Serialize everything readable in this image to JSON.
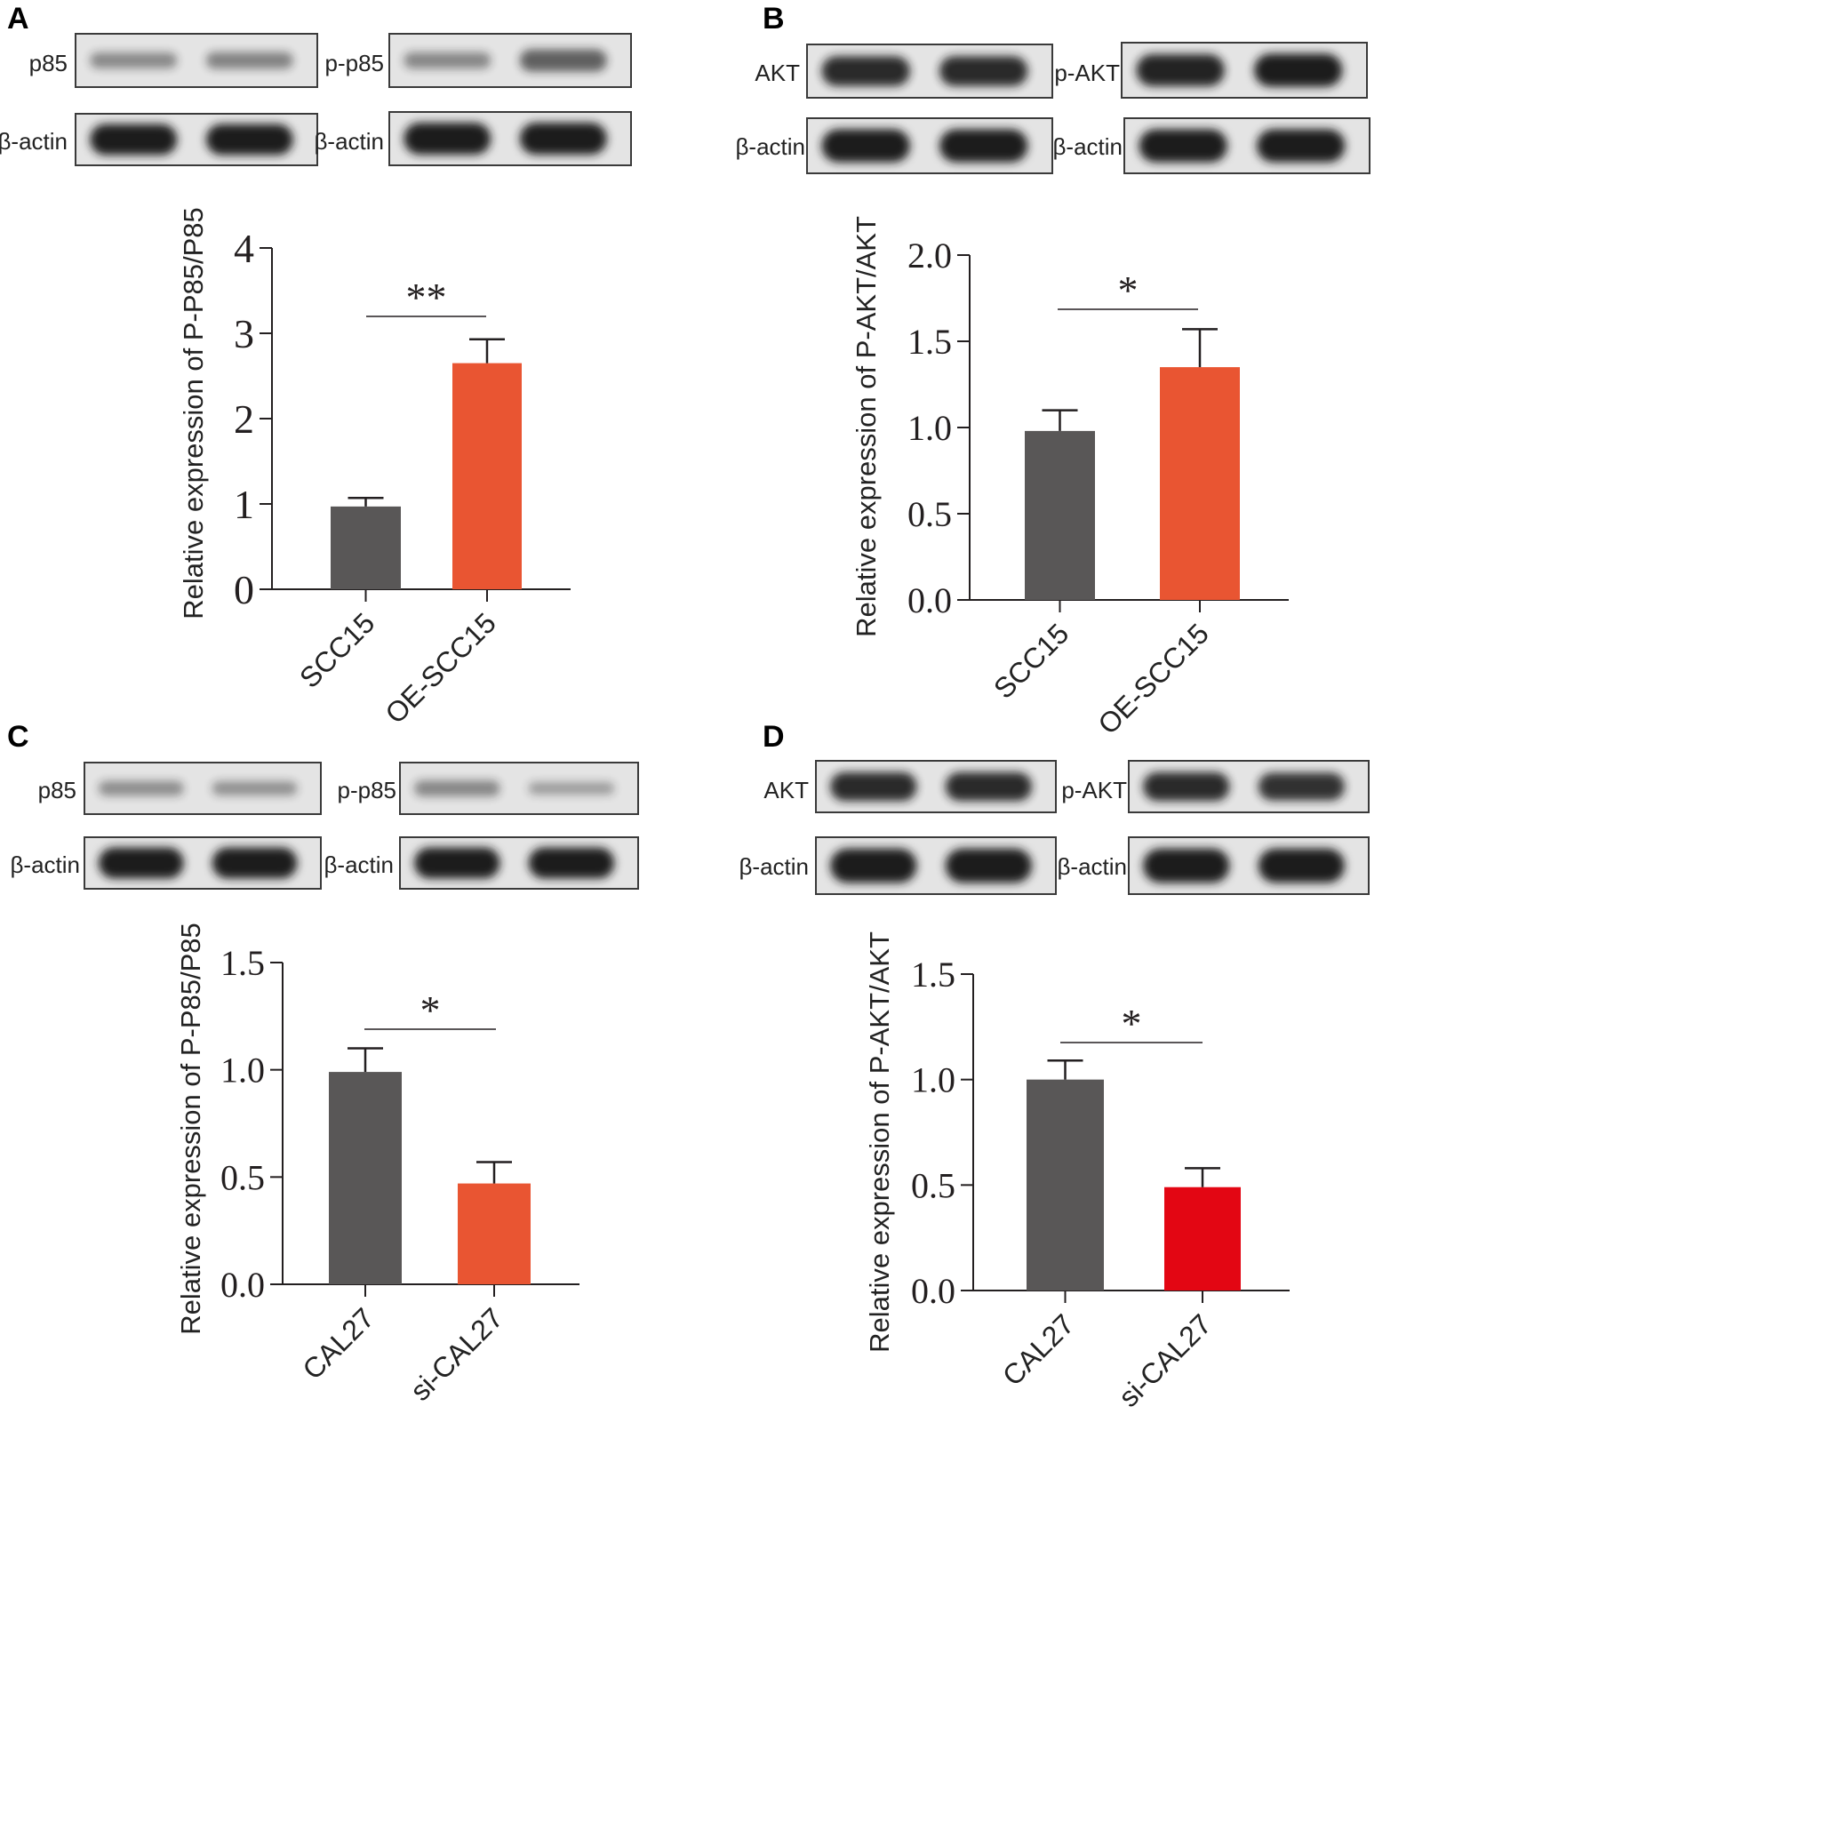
{
  "colors": {
    "control": "#595757",
    "treatment": "#E95532",
    "treatment_red": "#E30613",
    "axis": "#231F20",
    "blot_bg": "#E4E4E4",
    "band": "#1A1A1A"
  },
  "panels": [
    {
      "letter": "A",
      "blots": [
        {
          "label": "p85",
          "band_strength": [
            0.28,
            0.32
          ]
        },
        {
          "label": "p-p85",
          "band_strength": [
            0.3,
            0.55
          ]
        },
        {
          "label": "β-actin",
          "band_strength": [
            1.0,
            1.0
          ]
        },
        {
          "label": "β-actin",
          "band_strength": [
            1.0,
            1.0
          ]
        }
      ]
    },
    {
      "letter": "B",
      "blots": [
        {
          "label": "AKT",
          "band_strength": [
            0.9,
            0.9
          ]
        },
        {
          "label": "p-AKT",
          "band_strength": [
            0.95,
            1.0
          ]
        },
        {
          "label": "β-actin",
          "band_strength": [
            1.0,
            1.0
          ]
        },
        {
          "label": "β-actin",
          "band_strength": [
            1.0,
            1.0
          ]
        }
      ]
    },
    {
      "letter": "C",
      "blots": [
        {
          "label": "p85",
          "band_strength": [
            0.25,
            0.22
          ]
        },
        {
          "label": "p-p85",
          "band_strength": [
            0.3,
            0.15
          ]
        },
        {
          "label": "β-actin",
          "band_strength": [
            1.0,
            1.0
          ]
        },
        {
          "label": "β-actin",
          "band_strength": [
            1.0,
            1.0
          ]
        }
      ]
    },
    {
      "letter": "D",
      "blots": [
        {
          "label": "AKT",
          "band_strength": [
            0.9,
            0.9
          ]
        },
        {
          "label": "p-AKT",
          "band_strength": [
            0.9,
            0.85
          ]
        },
        {
          "label": "β-actin",
          "band_strength": [
            1.0,
            1.0
          ]
        },
        {
          "label": "β-actin",
          "band_strength": [
            1.0,
            1.0
          ]
        }
      ]
    }
  ],
  "chart_data": [
    {
      "panel": "A",
      "type": "bar",
      "categories": [
        "SCC15",
        "OE-SCC15"
      ],
      "values": [
        0.97,
        2.65
      ],
      "errors": [
        0.1,
        0.28
      ],
      "colors": [
        "#595757",
        "#E95532"
      ],
      "ylabel": "Relative expression of  P-P85/P85",
      "ylim": [
        0,
        4
      ],
      "yticks": [
        "0",
        "1",
        "2",
        "3",
        "4"
      ],
      "significance": "**",
      "grid": false
    },
    {
      "panel": "B",
      "type": "bar",
      "categories": [
        "SCC15",
        "OE-SCC15"
      ],
      "values": [
        0.98,
        1.35
      ],
      "errors": [
        0.12,
        0.22
      ],
      "colors": [
        "#595757",
        "#E95532"
      ],
      "ylabel": "Relative expression of  P-AKT/AKT",
      "ylim": [
        0,
        2
      ],
      "yticks": [
        "0.0",
        "0.5",
        "1.0",
        "1.5",
        "2.0"
      ],
      "significance": "*",
      "grid": false
    },
    {
      "panel": "C",
      "type": "bar",
      "categories": [
        "CAL27",
        "si-CAL27"
      ],
      "values": [
        0.99,
        0.47
      ],
      "errors": [
        0.11,
        0.1
      ],
      "colors": [
        "#595757",
        "#E95532"
      ],
      "ylabel": "Relative expression of  P-P85/P85",
      "ylim": [
        0,
        1.5
      ],
      "yticks": [
        "0.0",
        "0.5",
        "1.0",
        "1.5"
      ],
      "significance": "*",
      "grid": false
    },
    {
      "panel": "D",
      "type": "bar",
      "categories": [
        "CAL27",
        "si-CAL27"
      ],
      "values": [
        1.0,
        0.49
      ],
      "errors": [
        0.09,
        0.09
      ],
      "colors": [
        "#595757",
        "#E30613"
      ],
      "ylabel": "Relative expression of  P-AKT/AKT",
      "ylim": [
        0,
        1.5
      ],
      "yticks": [
        "0.0",
        "0.5",
        "1.0",
        "1.5"
      ],
      "significance": "*",
      "grid": false
    }
  ]
}
